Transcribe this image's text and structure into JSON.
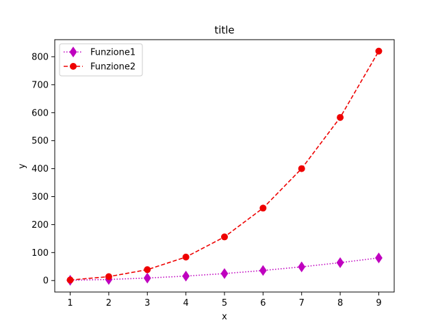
{
  "chart_data": {
    "type": "line",
    "title": "title",
    "xlabel": "x",
    "ylabel": "y",
    "xlim": [
      0.6,
      9.4
    ],
    "ylim": [
      -40.95,
      860.95
    ],
    "xticks": [
      1,
      2,
      3,
      4,
      5,
      6,
      7,
      8,
      9
    ],
    "yticks": [
      0,
      100,
      200,
      300,
      400,
      500,
      600,
      700,
      800
    ],
    "grid": false,
    "legend_position": "top-left",
    "series": [
      {
        "name": "Funzione1",
        "x": [
          1,
          2,
          3,
          4,
          5,
          6,
          7,
          8,
          9
        ],
        "values": [
          1,
          4,
          9,
          16,
          25,
          36,
          49,
          64,
          81
        ],
        "color": "#bf00bf",
        "line_style": "dotted",
        "marker": "diamond"
      },
      {
        "name": "Funzione2",
        "x": [
          1,
          2,
          3,
          4,
          5,
          6,
          7,
          8,
          9
        ],
        "values": [
          2,
          14,
          39,
          84,
          156,
          259,
          400,
          583,
          820
        ],
        "color": "#ee0000",
        "line_style": "dashed",
        "marker": "circle"
      }
    ]
  }
}
